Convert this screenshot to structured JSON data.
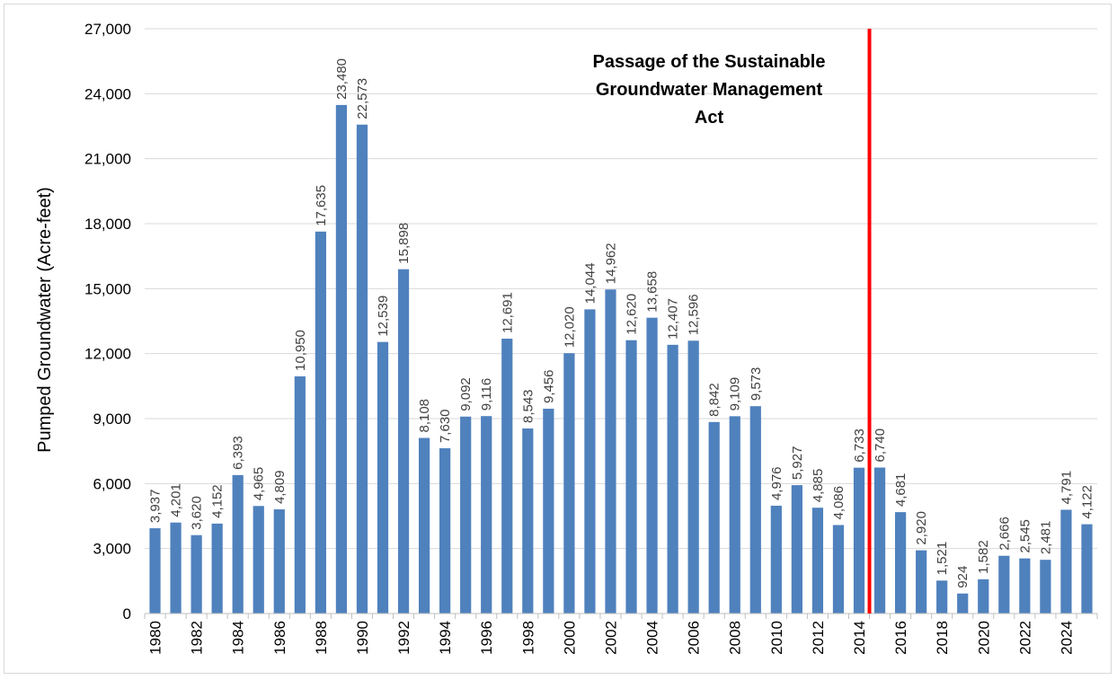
{
  "chart_data": {
    "type": "bar",
    "title": "",
    "xlabel": "",
    "ylabel": "Pumped Groundwater (Acre-feet)",
    "ylim": [
      0,
      27000
    ],
    "yticks": [
      0,
      3000,
      6000,
      9000,
      12000,
      15000,
      18000,
      21000,
      24000,
      27000
    ],
    "ytick_labels": [
      "0",
      "3,000",
      "6,000",
      "9,000",
      "12,000",
      "15,000",
      "18,000",
      "21,000",
      "24,000",
      "27,000"
    ],
    "grid": "horizontal",
    "legend": "none",
    "bar_color": "#4f81bd",
    "categories": [
      1980,
      1981,
      1982,
      1983,
      1984,
      1985,
      1986,
      1987,
      1988,
      1989,
      1990,
      1991,
      1992,
      1993,
      1994,
      1995,
      1996,
      1997,
      1998,
      1999,
      2000,
      2001,
      2002,
      2003,
      2004,
      2005,
      2006,
      2007,
      2008,
      2009,
      2010,
      2011,
      2012,
      2013,
      2014,
      2015,
      2016,
      2017,
      2018,
      2019,
      2020,
      2021,
      2022,
      2023,
      2024,
      2025
    ],
    "values": [
      3937,
      4201,
      3620,
      4152,
      6393,
      4965,
      4809,
      10950,
      17635,
      23480,
      22573,
      12539,
      15898,
      8108,
      7630,
      9092,
      9116,
      12691,
      8543,
      9456,
      12020,
      14044,
      14962,
      12620,
      13658,
      12407,
      12596,
      8842,
      9109,
      9573,
      4976,
      5927,
      4885,
      4086,
      6733,
      6740,
      4681,
      2920,
      1521,
      924,
      1582,
      2666,
      2545,
      2481,
      4791,
      4122
    ],
    "data_labels": [
      "3,937",
      "4,201",
      "3,620",
      "4,152",
      "6,393",
      "4,965",
      "4,809",
      "10,950",
      "17,635",
      "23,480",
      "22,573",
      "12,539",
      "15,898",
      "8,108",
      "7,630",
      "9,092",
      "9,116",
      "12,691",
      "8,543",
      "9,456",
      "12,020",
      "14,044",
      "14,962",
      "12,620",
      "13,658",
      "12,407",
      "12,596",
      "8,842",
      "9,109",
      "9,573",
      "4,976",
      "5,927",
      "4,885",
      "4,086",
      "6,733",
      "6,740",
      "4,681",
      "2,920",
      "1,521",
      "924",
      "1,582",
      "2,666",
      "2,545",
      "2,481",
      "4,791",
      "4,122"
    ],
    "x_tick_labels": [
      "1980",
      "1982",
      "1984",
      "1986",
      "1988",
      "1990",
      "1992",
      "1994",
      "1996",
      "1998",
      "2000",
      "2002",
      "2004",
      "2006",
      "2008",
      "2010",
      "2012",
      "2014",
      "2016",
      "2018",
      "2020",
      "2022",
      "2024"
    ],
    "annotation": {
      "lines": [
        "Passage of the Sustainable",
        "Groundwater Management",
        "Act"
      ],
      "marker_year": 2014.5,
      "marker_color": "#ff0000"
    }
  }
}
